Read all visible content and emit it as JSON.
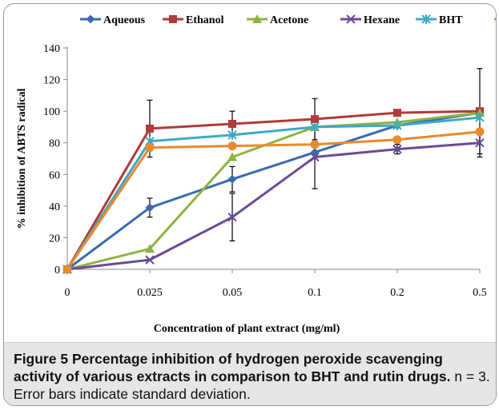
{
  "chart_data": {
    "type": "line",
    "categories": [
      "0",
      "0.025",
      "0.05",
      "0.1",
      "0.2",
      "0.5"
    ],
    "xlabel": "Concentration of plant extract (mg/ml)",
    "ylabel": "% inhibition of ABTS radical",
    "ylim": [
      0,
      140
    ],
    "yticks": [
      0,
      20,
      40,
      60,
      80,
      100,
      120,
      140
    ],
    "grid": false,
    "legend_position": "top",
    "series": [
      {
        "name": "Aqueous",
        "color": "#3a6bb0",
        "marker": "diamond",
        "values": [
          0,
          39,
          57,
          74,
          91,
          99
        ],
        "errors": [
          0,
          6,
          8,
          0,
          0,
          0
        ]
      },
      {
        "name": "Ethanol",
        "color": "#b13a3a",
        "marker": "square",
        "values": [
          0,
          89,
          92,
          95,
          99,
          100
        ],
        "errors": [
          0,
          18,
          8,
          13,
          0,
          27
        ]
      },
      {
        "name": "Acetone",
        "color": "#8db33f",
        "marker": "triangle",
        "values": [
          0,
          13,
          71,
          90,
          93,
          99
        ],
        "errors": [
          0,
          0,
          0,
          0,
          0,
          0
        ]
      },
      {
        "name": "Hexane",
        "color": "#6b4a97",
        "marker": "x",
        "values": [
          0,
          6,
          33,
          71,
          76,
          80
        ],
        "errors": [
          0,
          0,
          15,
          20,
          3,
          9
        ]
      },
      {
        "name": "BHT",
        "color": "#3ca9c6",
        "marker": "star",
        "values": [
          0,
          81,
          85,
          90,
          91,
          96
        ],
        "errors": [
          0,
          0,
          0,
          0,
          0,
          0
        ]
      },
      {
        "name": "Rutin",
        "color": "#e98a2e",
        "marker": "circle",
        "values": [
          0,
          77,
          78,
          79,
          82,
          87
        ],
        "errors": [
          0,
          0,
          0,
          0,
          0,
          0
        ]
      }
    ]
  },
  "caption": {
    "label": "Figure 5",
    "title": "Percentage inhibition of hydrogen peroxide scavenging activity of various extracts in comparison to BHT and rutin drugs.",
    "note": "n = 3. Error bars indicate standard deviation."
  }
}
